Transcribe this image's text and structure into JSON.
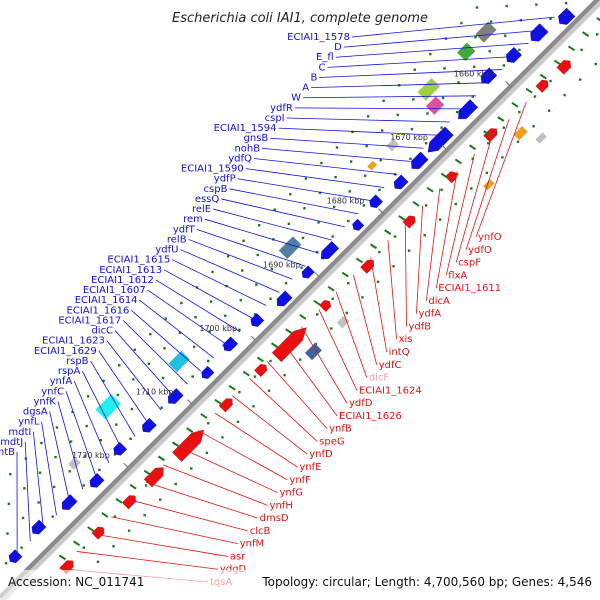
{
  "title": "Escherichia coli IAI1, complete genome",
  "footer": {
    "accession": "Accession: NC_011741",
    "summary": "Topology: circular; Length: 4,700,560 bp; Genes: 4,546"
  },
  "colors": {
    "forward": "#1010e0",
    "reverse": "#e81010",
    "tick": "#1a7a1a",
    "backbone": "#909090"
  },
  "ticks": [
    "1660 kbp",
    "1670 kbp",
    "1680 kbp",
    "1690 kbp",
    "1700 kbp",
    "1710 kbp",
    "1720 kbp"
  ],
  "forward_labels": [
    "ECIAI1_1578",
    "D",
    "E_fl",
    "C",
    "B",
    "A",
    "W",
    "ydfR",
    "cspI",
    "ECIAI1_1594",
    "gnsB",
    "nohB",
    "ydfQ",
    "ECIAI1_1590",
    "ydfP",
    "cspB",
    "essQ",
    "relE",
    "rem",
    "ydfT",
    "relB",
    "ydfU",
    "ECIAI1_1615",
    "ECIAI1_1613",
    "ECIAI1_1612",
    "ECIAI1_1607",
    "ECIAI1_1614",
    "ECIAI1_1616",
    "ECIAI1_1617",
    "dicC",
    "ECIAI1_1623",
    "ECIAI1_1629",
    "rspB",
    "rspA",
    "ynfA",
    "ynfC",
    "ynfK",
    "dgsA",
    "ynfL",
    "mdtI",
    "mdtJ",
    "pntB"
  ],
  "reverse_labels": [
    "ynfO",
    "ydfO",
    "cspF",
    "flxA",
    "ECIAI1_1611",
    "dicA",
    "ydfA",
    "ydfB",
    "xis",
    "intQ",
    "ydfC",
    "dicF",
    "ECIAI1_1624",
    "ydfD",
    "ECIAI1_1626",
    "ynfB",
    "speG",
    "ynfD",
    "ynfE",
    "ynfF",
    "ynfG",
    "ynfH",
    "dmsD",
    "clcB",
    "ynfM",
    "asr",
    "ydgD",
    "tqsA"
  ]
}
